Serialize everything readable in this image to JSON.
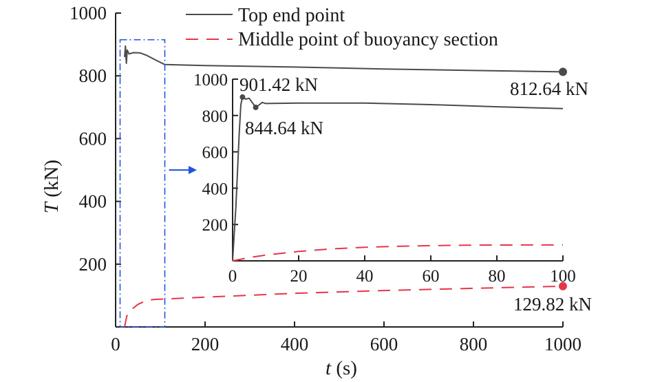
{
  "chart_data": [
    {
      "type": "line",
      "role": "main",
      "xlabel_symbol": "t",
      "xlabel_unit": " (s)",
      "ylabel_symbol": "T",
      "ylabel_unit": " (kN)",
      "xlim": [
        0,
        1000
      ],
      "ylim": [
        0,
        1000
      ],
      "x_ticks": [
        0,
        200,
        400,
        600,
        800,
        1000
      ],
      "y_ticks": [
        200,
        400,
        600,
        800,
        1000
      ],
      "legend_position": "top",
      "series": [
        {
          "name": "Top end point",
          "color": "#4a4a4a",
          "style": "solid",
          "points": [
            [
              20,
              860
            ],
            [
              22,
              895
            ],
            [
              24,
              840
            ],
            [
              26,
              882
            ],
            [
              30,
              870
            ],
            [
              40,
              874
            ],
            [
              55,
              873
            ],
            [
              70,
              865
            ],
            [
              90,
              850
            ],
            [
              110,
              836
            ],
            [
              200,
              833
            ],
            [
              400,
              828
            ],
            [
              600,
              822
            ],
            [
              800,
              817
            ],
            [
              1000,
              812.64
            ]
          ]
        },
        {
          "name": "Middle point of buoyancy section",
          "color": "#e8344a",
          "style": "dashed",
          "points": [
            [
              20,
              0
            ],
            [
              25,
              35
            ],
            [
              35,
              55
            ],
            [
              50,
              72
            ],
            [
              70,
              85
            ],
            [
              90,
              88
            ],
            [
              110,
              89
            ],
            [
              200,
              95
            ],
            [
              400,
              107
            ],
            [
              600,
              116
            ],
            [
              800,
              123
            ],
            [
              1000,
              129.82
            ]
          ]
        }
      ],
      "annotations": [
        {
          "text": "812.64 kN",
          "x": 1000,
          "y": 812.64,
          "series": "Top end point"
        },
        {
          "text": "129.82 kN",
          "x": 1000,
          "y": 129.82,
          "series": "Middle point of buoyancy section"
        }
      ],
      "highlight_region": {
        "x": [
          10,
          110
        ],
        "y": [
          0,
          915
        ],
        "color": "#2255dd"
      }
    },
    {
      "type": "line",
      "role": "inset",
      "xlim": [
        0,
        100
      ],
      "ylim": [
        0,
        1000
      ],
      "x_ticks": [
        0,
        20,
        40,
        60,
        80,
        100
      ],
      "y_ticks": [
        200,
        400,
        600,
        800,
        1000
      ],
      "series": [
        {
          "name": "Top end point",
          "color": "#4a4a4a",
          "style": "solid",
          "points": [
            [
              0,
              0
            ],
            [
              1,
              300
            ],
            [
              2,
              700
            ],
            [
              2.5,
              860
            ],
            [
              3,
              901.42
            ],
            [
              4,
              890
            ],
            [
              5,
              895
            ],
            [
              6,
              870
            ],
            [
              7,
              844.64
            ],
            [
              8,
              858
            ],
            [
              9,
              872
            ],
            [
              10,
              866
            ],
            [
              20,
              868
            ],
            [
              40,
              868
            ],
            [
              60,
              860
            ],
            [
              80,
              848
            ],
            [
              100,
              838
            ]
          ]
        },
        {
          "name": "Middle point of buoyancy section",
          "color": "#e8344a",
          "style": "dashed",
          "points": [
            [
              0,
              0
            ],
            [
              5,
              18
            ],
            [
              10,
              32
            ],
            [
              20,
              52
            ],
            [
              30,
              66
            ],
            [
              40,
              75
            ],
            [
              50,
              80
            ],
            [
              60,
              84
            ],
            [
              70,
              86
            ],
            [
              80,
              87
            ],
            [
              100,
              88
            ]
          ]
        }
      ],
      "annotations": [
        {
          "text": "901.42 kN",
          "x": 3,
          "y": 901.42
        },
        {
          "text": "844.64 kN",
          "x": 7,
          "y": 844.64
        }
      ]
    }
  ]
}
